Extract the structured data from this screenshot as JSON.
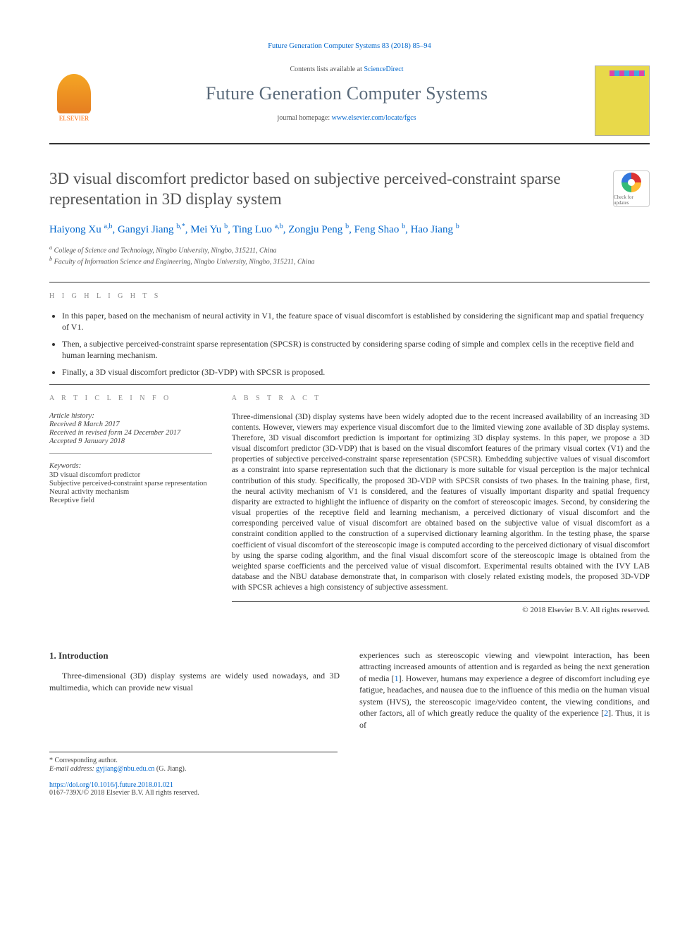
{
  "topCitation": "Future Generation Computer Systems 83 (2018) 85–94",
  "contentsLine": {
    "prefix": "Contents lists available at ",
    "link": "ScienceDirect"
  },
  "journalName": "Future Generation Computer Systems",
  "homepage": {
    "prefix": "journal homepage: ",
    "url": "www.elsevier.com/locate/fgcs"
  },
  "publisherLogo": "ELSEVIER",
  "checkBadge": "Check for updates",
  "title": "3D visual discomfort predictor based on subjective perceived-constraint sparse representation in 3D display system",
  "authorsHtml": "Haiyong Xu <sup>a,b</sup>, Gangyi Jiang <sup>b,*</sup>, Mei Yu <sup>b</sup>, Ting Luo <sup>a,b</sup>, Zongju Peng <sup>b</sup>, Feng Shao <sup>b</sup>, Hao Jiang <sup>b</sup>",
  "affiliations": [
    "a College of Science and Technology, Ningbo University, Ningbo, 315211, China",
    "b Faculty of Information Science and Engineering, Ningbo University, Ningbo, 315211, China"
  ],
  "highlightsLabel": "h i g h l i g h t s",
  "highlights": [
    "In this paper, based on the mechanism of neural activity in V1, the feature space of visual discomfort is established by considering the significant map and spatial frequency of V1.",
    "Then, a subjective perceived-constraint sparse representation (SPCSR) is constructed by considering sparse coding of simple and complex cells in the receptive field and human learning mechanism.",
    "Finally, a 3D visual discomfort predictor (3D-VDP) with SPCSR is proposed."
  ],
  "articleInfo": {
    "label": "a r t i c l e   i n f o",
    "historyLabel": "Article history:",
    "history": [
      "Received 8 March 2017",
      "Received in revised form 24 December 2017",
      "Accepted 9 January 2018"
    ],
    "keywordsLabel": "Keywords:",
    "keywords": [
      "3D visual discomfort predictor",
      "Subjective perceived-constraint sparse representation",
      "Neural activity mechanism",
      "Receptive field"
    ]
  },
  "abstractLabel": "a b s t r a c t",
  "abstractText": "Three-dimensional (3D) display systems have been widely adopted due to the recent increased availability of an increasing 3D contents. However, viewers may experience visual discomfort due to the limited viewing zone available of 3D display systems. Therefore, 3D visual discomfort prediction is important for optimizing 3D display systems. In this paper, we propose a 3D visual discomfort predictor (3D-VDP) that is based on the visual discomfort features of the primary visual cortex (V1) and the properties of subjective perceived-constraint sparse representation (SPCSR). Embedding subjective values of visual discomfort as a constraint into sparse representation such that the dictionary is more suitable for visual perception is the major technical contribution of this study. Specifically, the proposed 3D-VDP with SPCSR consists of two phases. In the training phase, first, the neural activity mechanism of V1 is considered, and the features of visually important disparity and spatial frequency disparity are extracted to highlight the influence of disparity on the comfort of stereoscopic images. Second, by considering the visual properties of the receptive field and learning mechanism, a perceived dictionary of visual discomfort and the corresponding perceived value of visual discomfort are obtained based on the subjective value of visual discomfort as a constraint condition applied to the construction of a supervised dictionary learning algorithm. In the testing phase, the sparse coefficient of visual discomfort of the stereoscopic image is computed according to the perceived dictionary of visual discomfort by using the sparse coding algorithm, and the final visual discomfort score of the stereoscopic image is obtained from the weighted sparse coefficients and the perceived value of visual discomfort. Experimental results obtained with the IVY LAB database and the NBU database demonstrate that, in comparison with closely related existing models, the proposed 3D-VDP with SPCSR achieves a high consistency of subjective assessment.",
  "copyright": "© 2018 Elsevier B.V. All rights reserved.",
  "intro": {
    "heading": "1. Introduction",
    "left": "Three-dimensional (3D) display systems are widely used nowadays, and 3D multimedia, which can provide new visual",
    "right": "experiences such as stereoscopic viewing and viewpoint interaction, has been attracting increased amounts of attention and is regarded as being the next generation of media [1]. However, humans may experience a degree of discomfort including eye fatigue, headaches, and nausea due to the influence of this media on the human visual system (HVS), the stereoscopic image/video content, the viewing conditions, and other factors, all of which greatly reduce the quality of the experience [2]. Thus, it is of"
  },
  "footnotes": {
    "corr": "* Corresponding author.",
    "emailLabel": "E-mail address: ",
    "email": "gyjiang@nbu.edu.cn",
    "emailSuffix": " (G. Jiang)."
  },
  "doi": {
    "url": "https://doi.org/10.1016/j.future.2018.01.021",
    "line2": "0167-739X/© 2018 Elsevier B.V. All rights reserved."
  },
  "colors": {
    "link": "#0066cc",
    "journalName": "#5a6a7a",
    "elsevierOrange": "#ff6600",
    "coverBg": "#e8d94a"
  }
}
